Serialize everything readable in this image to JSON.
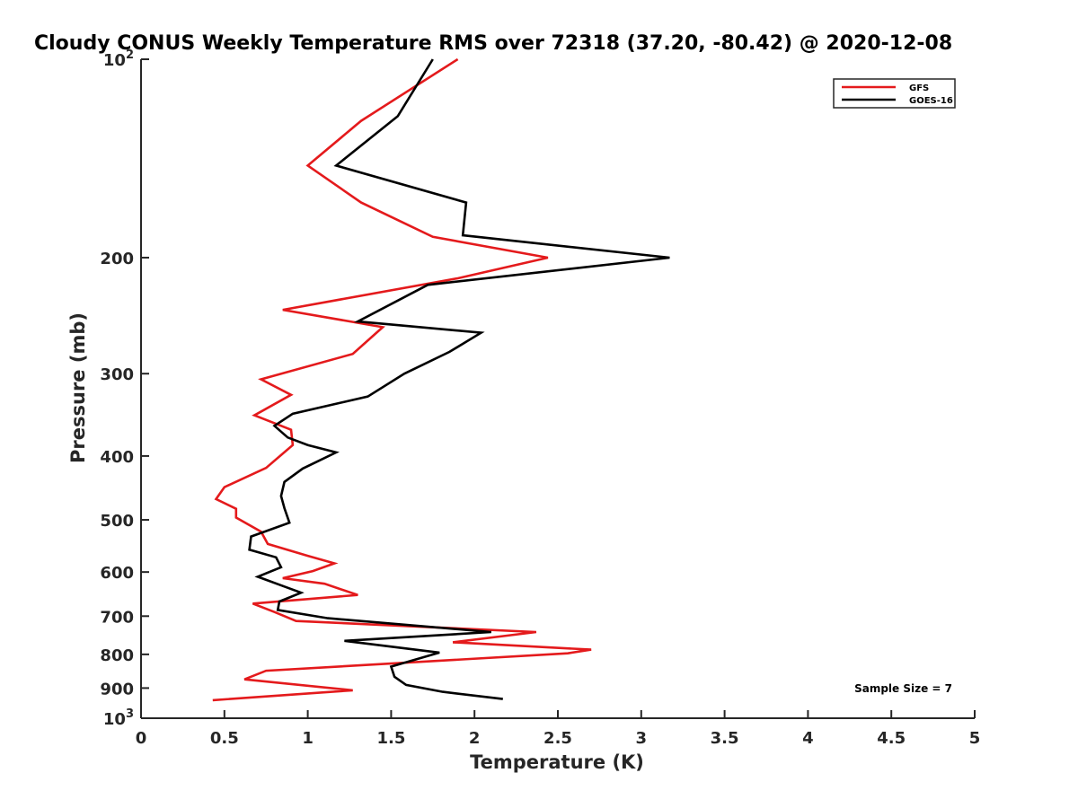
{
  "chart_data": {
    "type": "line",
    "title": "Cloudy CONUS Weekly Temperature RMS over 72318 (37.20, -80.42) @ 2020-12-08",
    "xlabel": "Temperature (K)",
    "ylabel": "Pressure (mb)",
    "xlim": [
      0,
      5
    ],
    "ylim": [
      100,
      1000
    ],
    "y_scale": "log",
    "y_reversed": true,
    "x_ticks": [
      0,
      0.5,
      1,
      1.5,
      2,
      2.5,
      3,
      3.5,
      4,
      4.5,
      5
    ],
    "x_tick_labels": [
      "0",
      "0.5",
      "1",
      "1.5",
      "2",
      "2.5",
      "3",
      "3.5",
      "4",
      "4.5",
      "5"
    ],
    "y_ticks": [
      100,
      200,
      300,
      400,
      500,
      600,
      700,
      800,
      900,
      1000
    ],
    "y_tick_labels": [
      "10^2",
      "200",
      "300",
      "400",
      "500",
      "600",
      "700",
      "800",
      "900",
      "10^3"
    ],
    "grid": false,
    "legend": {
      "placement": "top-right",
      "entries": [
        "GFS",
        "GOES-16"
      ]
    },
    "annotation": "Sample Size = 7",
    "series": [
      {
        "name": "GFS",
        "color": "#e41a1c",
        "x": [
          1.9,
          1.32,
          1.0,
          1.32,
          1.75,
          2.44,
          1.9,
          0.85,
          1.45,
          1.27,
          0.72,
          0.9,
          0.68,
          0.9,
          0.91,
          0.75,
          0.5,
          0.45,
          0.57,
          0.57,
          0.72,
          0.76,
          1.0,
          1.16,
          1.03,
          0.85,
          1.1,
          1.3,
          0.67,
          0.8,
          0.93,
          2.37,
          1.87,
          2.7,
          2.56,
          0.75,
          0.62,
          1.27,
          0.43
        ],
        "y": [
          100,
          124,
          145,
          165,
          186,
          200,
          215,
          240,
          255,
          280,
          306,
          323,
          347,
          365,
          385,
          417,
          446,
          465,
          481,
          496,
          521,
          544,
          567,
          582,
          598,
          613,
          625,
          650,
          670,
          690,
          712,
          740,
          767,
          787,
          797,
          847,
          873,
          907,
          939
        ]
      },
      {
        "name": "GOES-16",
        "color": "#000000",
        "x": [
          1.75,
          1.54,
          1.17,
          1.95,
          1.93,
          3.17,
          1.72,
          1.3,
          2.04,
          1.85,
          1.58,
          1.36,
          0.91,
          0.8,
          0.88,
          1.0,
          1.17,
          0.97,
          0.86,
          0.84,
          0.86,
          0.89,
          0.66,
          0.65,
          0.81,
          0.84,
          0.7,
          0.85,
          0.96,
          0.83,
          0.82,
          1.12,
          2.1,
          1.22,
          1.79,
          1.5,
          1.52,
          1.59,
          1.81,
          2.17
        ],
        "y": [
          100,
          122,
          145,
          165,
          185,
          200,
          220,
          250,
          260,
          278,
          300,
          325,
          345,
          360,
          375,
          385,
          395,
          418,
          438,
          460,
          480,
          505,
          530,
          555,
          570,
          590,
          610,
          630,
          645,
          665,
          685,
          705,
          740,
          763,
          795,
          835,
          865,
          890,
          912,
          935
        ]
      }
    ]
  }
}
